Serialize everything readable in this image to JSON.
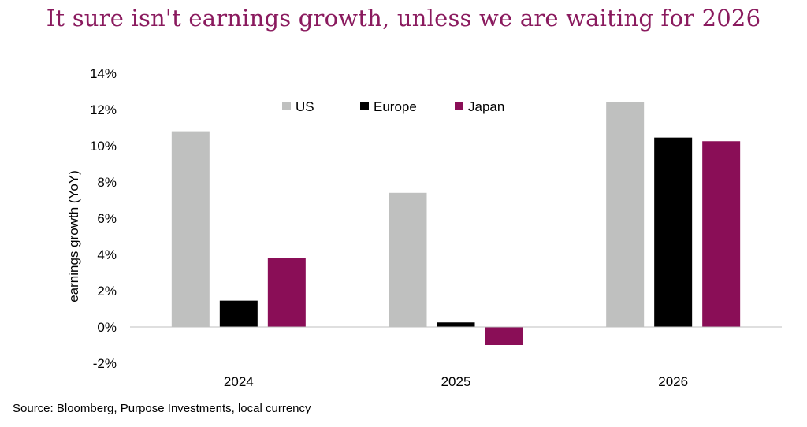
{
  "header": {
    "title": "It sure isn't earnings growth, unless we are waiting for 2026"
  },
  "footer": {
    "source": "Source: Bloomberg, Purpose Investments, local currency"
  },
  "chart_data": {
    "type": "bar",
    "title": "It sure isn't earnings growth, unless we are waiting for 2026",
    "xlabel": "",
    "ylabel": "earnings growth (YoY)",
    "categories": [
      "2024",
      "2025",
      "2026"
    ],
    "series": [
      {
        "name": "US",
        "color": "#bfc0bf",
        "values": [
          10.8,
          7.4,
          12.4
        ]
      },
      {
        "name": "Europe",
        "color": "#000000",
        "values": [
          1.45,
          0.25,
          10.45
        ]
      },
      {
        "name": "Japan",
        "color": "#8a0e57",
        "values": [
          3.8,
          -1.0,
          10.25
        ]
      }
    ],
    "ylim": [
      -2,
      14
    ],
    "yticks": [
      -2,
      0,
      2,
      4,
      6,
      8,
      10,
      12,
      14
    ],
    "ytick_labels": [
      "-2%",
      "0%",
      "2%",
      "4%",
      "6%",
      "8%",
      "10%",
      "12%",
      "14%"
    ],
    "grid": false,
    "legend_position": "top-center"
  }
}
